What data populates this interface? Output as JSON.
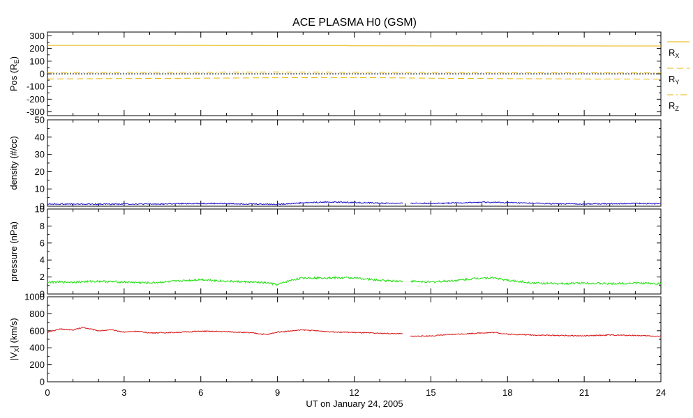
{
  "chart_data": {
    "type": "line",
    "title": "ACE PLASMA H0 (GSM)",
    "xlabel": "UT on January 24, 2005",
    "xlim": [
      0,
      24
    ],
    "x_ticks": [
      0,
      3,
      6,
      9,
      12,
      15,
      18,
      21,
      24
    ],
    "x_tick_labels": [
      "0",
      "3",
      "6",
      "9",
      "12",
      "15",
      "18",
      "21",
      "24"
    ],
    "panels": [
      {
        "id": "pos",
        "ylabel": "Pos (R",
        "ylabel_sub": "E",
        "ylabel_end": ")",
        "ylim": [
          -330,
          330
        ],
        "y_ticks": [
          -300,
          -200,
          -100,
          0,
          100,
          200,
          300
        ],
        "y_tick_labels": [
          "-300",
          "-200",
          "-100",
          "0",
          "100",
          "200",
          "300"
        ],
        "zero_line": true,
        "legend": [
          {
            "name": "R",
            "sub": "X",
            "style": "solid"
          },
          {
            "name": "R",
            "sub": "Y",
            "style": "dashed"
          },
          {
            "name": "R",
            "sub": "Z",
            "style": "dashdot"
          }
        ],
        "series": [
          {
            "name": "RX",
            "color": "#e8b400",
            "style": "solid",
            "x": [
              0,
              11.7,
              11.75,
              24
            ],
            "values": [
              225,
              224,
              221,
              220
            ]
          },
          {
            "name": "RY",
            "color": "#e8b400",
            "style": "dashed",
            "x": [
              0,
              3,
              6,
              9,
              12,
              15,
              18,
              21,
              24
            ],
            "values": [
              -40,
              -37,
              -34,
              -31,
              -29,
              -34,
              -38,
              -40,
              -41
            ]
          },
          {
            "name": "RZ",
            "color": "#e8b400",
            "style": "dashdot",
            "x": [
              0,
              3,
              6,
              9,
              12,
              15,
              18,
              21,
              24
            ],
            "values": [
              10,
              12,
              14,
              15,
              14,
              12,
              10,
              8,
              7
            ]
          }
        ]
      },
      {
        "id": "density",
        "ylabel": "density (#/cc)",
        "ylim": [
          0,
          50
        ],
        "y_ticks": [
          0,
          10,
          20,
          30,
          40,
          50
        ],
        "y_tick_labels": [
          "0",
          "10",
          "20",
          "30",
          "40",
          "50"
        ],
        "series": [
          {
            "name": "density",
            "color": "#1a10c8",
            "noise": 0.35,
            "x": [
              0,
              1,
              2,
              3,
              4,
              5,
              6,
              7,
              8,
              9,
              10,
              11,
              12,
              13,
              13.9,
              null,
              14.2,
              15,
              16,
              17,
              18,
              19,
              20,
              21,
              22,
              23,
              24
            ],
            "values": [
              1.3,
              1.2,
              1.2,
              1.3,
              1.2,
              1.4,
              1.6,
              1.5,
              1.3,
              1.1,
              2.0,
              2.4,
              2.2,
              1.8,
              1.6,
              null,
              1.8,
              1.6,
              1.9,
              2.3,
              2.1,
              1.7,
              1.4,
              1.3,
              1.5,
              1.6,
              1.5
            ]
          }
        ]
      },
      {
        "id": "pressure",
        "ylabel": "pressure (nPa)",
        "ylim": [
          0,
          10
        ],
        "y_ticks": [
          0,
          2,
          4,
          6,
          8,
          10
        ],
        "y_tick_labels": [
          "0",
          "2",
          "4",
          "6",
          "8",
          "10"
        ],
        "series": [
          {
            "name": "pressure",
            "color": "#22e010",
            "noise": 0.12,
            "x": [
              0,
              1,
              2,
              3,
              4,
              5,
              6,
              7,
              8,
              8.6,
              9,
              9.5,
              10,
              11,
              12,
              13,
              13.9,
              null,
              14.2,
              15,
              16,
              17,
              17.5,
              18,
              19,
              20,
              21,
              22,
              23,
              24
            ],
            "values": [
              1.4,
              1.4,
              1.5,
              1.4,
              1.3,
              1.5,
              1.7,
              1.5,
              1.4,
              1.3,
              1.1,
              1.6,
              1.9,
              1.9,
              1.9,
              1.6,
              1.5,
              null,
              1.5,
              1.4,
              1.6,
              1.9,
              1.9,
              1.6,
              1.3,
              1.2,
              1.3,
              1.2,
              1.3,
              1.2
            ]
          }
        ]
      },
      {
        "id": "vx",
        "ylabel": "|V",
        "ylabel_sub": "X",
        "ylabel_end": "| (km/s)",
        "ylim": [
          0,
          1000
        ],
        "y_ticks": [
          0,
          200,
          400,
          600,
          800,
          1000
        ],
        "y_tick_labels": [
          "0",
          "200",
          "400",
          "600",
          "800",
          "1000"
        ],
        "series": [
          {
            "name": "vx",
            "color": "#d81010",
            "noise": 6,
            "x": [
              0,
              0.5,
              1,
              1.4,
              2,
              2.5,
              3,
              3.5,
              4,
              5,
              6,
              7,
              8,
              8.6,
              9,
              10,
              11,
              12,
              13,
              13.9,
              null,
              14.2,
              15,
              16,
              17,
              17.5,
              18,
              19,
              20,
              21,
              22,
              23,
              24
            ],
            "values": [
              585,
              620,
              610,
              640,
              600,
              610,
              585,
              595,
              575,
              580,
              595,
              590,
              575,
              555,
              585,
              610,
              590,
              580,
              570,
              565,
              null,
              535,
              540,
              560,
              575,
              580,
              560,
              550,
              545,
              540,
              550,
              545,
              535
            ]
          }
        ]
      }
    ]
  }
}
